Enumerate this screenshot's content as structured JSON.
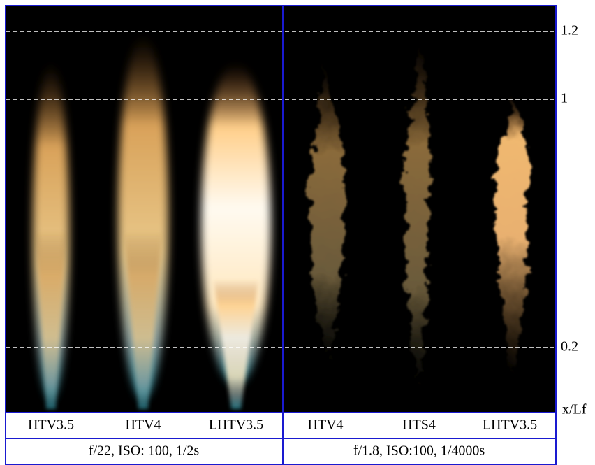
{
  "panels": [
    {
      "labels": [
        "HTV3.5",
        "HTV4",
        "LHTV3.5"
      ],
      "caption": "f/22, ISO: 100, 1/2s"
    },
    {
      "labels": [
        "HTV4",
        "HTS4",
        "LHTV3.5"
      ],
      "caption": "f/1.8, ISO:100, 1/4000s"
    }
  ],
  "axis": {
    "marks": [
      "1.2",
      "1",
      "0.2"
    ],
    "label": "x/Lf"
  }
}
